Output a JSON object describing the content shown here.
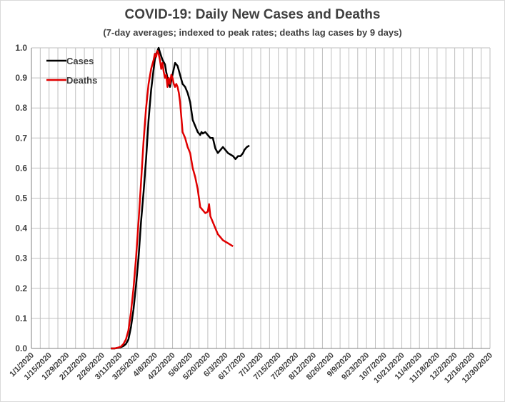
{
  "chart_data": {
    "type": "line",
    "title": "COVID-19: Daily New Cases and Deaths",
    "subtitle": "(7-day averages; indexed to peak rates; deaths lag cases by 9 days)",
    "xlabel": "",
    "ylabel": "",
    "ylim": [
      0,
      1.0
    ],
    "yticks": [
      "0.0",
      "0.1",
      "0.2",
      "0.3",
      "0.4",
      "0.5",
      "0.6",
      "0.7",
      "0.8",
      "0.9",
      "1.0"
    ],
    "x_tick_labels": [
      "1/1/2020",
      "1/15/2020",
      "1/29/2020",
      "2/12/2020",
      "2/26/2020",
      "3/11/2020",
      "3/25/2020",
      "4/8/2020",
      "4/22/2020",
      "5/6/2020",
      "5/20/2020",
      "6/3/2020",
      "6/17/2020",
      "7/1/2020",
      "7/15/2020",
      "7/29/2020",
      "8/12/2020",
      "8/26/2020",
      "9/9/2020",
      "9/23/2020",
      "10/7/2020",
      "10/21/2020",
      "11/4/2020",
      "11/18/2020",
      "12/2/2020",
      "12/16/2020",
      "12/30/2020"
    ],
    "x_unit": "days since 1/1/2020",
    "xlim": [
      0,
      364
    ],
    "grid": true,
    "legend_position": "top-left",
    "series": [
      {
        "name": "Cases",
        "color": "#000000",
        "x": [
          63,
          66,
          69,
          71,
          73,
          75,
          77,
          79,
          81,
          83,
          85,
          87,
          89,
          91,
          93,
          95,
          97,
          98,
          99,
          100,
          101,
          102,
          104,
          106,
          107,
          108,
          110,
          112,
          114,
          116,
          118,
          120,
          122,
          124,
          126,
          128,
          130,
          132,
          134,
          135,
          136,
          138,
          140,
          142,
          144,
          146,
          148,
          150,
          152,
          154,
          156,
          158,
          160,
          162,
          164,
          166,
          168,
          169,
          171,
          173
        ],
        "values": [
          0.0,
          0.0,
          0.002,
          0.004,
          0.008,
          0.015,
          0.03,
          0.07,
          0.13,
          0.21,
          0.3,
          0.42,
          0.52,
          0.63,
          0.76,
          0.86,
          0.93,
          0.96,
          0.98,
          0.99,
          1.0,
          0.985,
          0.96,
          0.945,
          0.92,
          0.9,
          0.87,
          0.91,
          0.95,
          0.94,
          0.91,
          0.88,
          0.87,
          0.85,
          0.82,
          0.76,
          0.74,
          0.72,
          0.71,
          0.72,
          0.715,
          0.72,
          0.71,
          0.7,
          0.7,
          0.665,
          0.65,
          0.66,
          0.67,
          0.66,
          0.65,
          0.645,
          0.64,
          0.63,
          0.64,
          0.64,
          0.65,
          0.66,
          0.67,
          0.675
        ]
      },
      {
        "name": "Deaths",
        "color": "#e00000",
        "x": [
          63,
          66,
          69,
          71,
          73,
          75,
          77,
          79,
          81,
          83,
          85,
          87,
          89,
          91,
          93,
          95,
          97,
          98,
          99,
          100,
          101,
          102,
          103,
          104,
          105,
          106,
          107,
          108,
          109,
          110,
          111,
          112,
          113,
          114,
          115,
          116,
          117,
          118,
          120,
          122,
          124,
          126,
          128,
          130,
          132,
          134,
          136,
          138,
          140,
          141,
          142,
          144,
          146,
          148,
          150,
          152,
          154,
          156,
          158,
          160
        ],
        "values": [
          0.0,
          0.0,
          0.003,
          0.006,
          0.015,
          0.03,
          0.06,
          0.12,
          0.2,
          0.3,
          0.42,
          0.55,
          0.69,
          0.8,
          0.88,
          0.93,
          0.96,
          0.98,
          0.97,
          0.99,
          0.98,
          0.96,
          0.93,
          0.95,
          0.92,
          0.9,
          0.91,
          0.87,
          0.9,
          0.88,
          0.91,
          0.9,
          0.88,
          0.87,
          0.88,
          0.87,
          0.85,
          0.82,
          0.72,
          0.7,
          0.67,
          0.65,
          0.6,
          0.57,
          0.53,
          0.47,
          0.46,
          0.45,
          0.455,
          0.48,
          0.44,
          0.42,
          0.4,
          0.38,
          0.37,
          0.36,
          0.355,
          0.35,
          0.345,
          0.34
        ]
      }
    ]
  }
}
